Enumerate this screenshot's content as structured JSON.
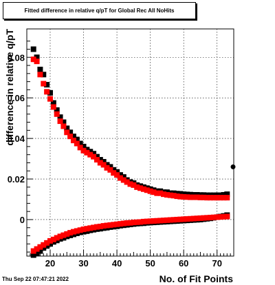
{
  "title": "Fitted difference in relative q/pT for Global Rec All NoHits",
  "timestamp": "Thu Sep 22 07:47:21 2022",
  "chart_data": {
    "type": "scatter",
    "title": "Fitted difference in relative q/pT for Global Rec All NoHits",
    "xlabel": "No. of Fit Points",
    "ylabel": "difference in relative q/pT",
    "xlim": [
      13,
      75
    ],
    "ylim": [
      -0.018,
      0.094
    ],
    "grid": true,
    "x_ticks": [
      20,
      30,
      40,
      50,
      60,
      70
    ],
    "x_tick_labels": [
      "20",
      "30",
      "40",
      "50",
      "60",
      "70"
    ],
    "y_ticks": [
      0,
      0.02,
      0.04,
      0.06,
      0.08
    ],
    "y_tick_labels": [
      "0",
      "0.02",
      "0.04",
      "0.06",
      "0.08"
    ],
    "colors": {
      "black": "#000000",
      "red": "#ff0000"
    },
    "series": [
      {
        "color": "black",
        "x": [
          15,
          16,
          17,
          18,
          19,
          20,
          21,
          22,
          23,
          24,
          25,
          26,
          27,
          28,
          29,
          30,
          31,
          32,
          33,
          34,
          35,
          36,
          37,
          38,
          39,
          40,
          41,
          42,
          43,
          44,
          45,
          46,
          47,
          48,
          49,
          50,
          51,
          52,
          53,
          54,
          55,
          56,
          57,
          58,
          59,
          60,
          61,
          62,
          63,
          64,
          65,
          66,
          67,
          68,
          69,
          70,
          71,
          72,
          73
        ],
        "y": [
          0.084,
          0.08,
          0.074,
          0.0715,
          0.0665,
          0.0625,
          0.0575,
          0.054,
          0.0505,
          0.048,
          0.045,
          0.043,
          0.041,
          0.0395,
          0.0375,
          0.036,
          0.0345,
          0.0335,
          0.0325,
          0.031,
          0.0295,
          0.0285,
          0.027,
          0.026,
          0.0245,
          0.0235,
          0.022,
          0.021,
          0.0195,
          0.0185,
          0.018,
          0.017,
          0.0165,
          0.016,
          0.0155,
          0.015,
          0.0145,
          0.014,
          0.014,
          0.0135,
          0.0135,
          0.013,
          0.013,
          0.0128,
          0.0127,
          0.0125,
          0.0124,
          0.0123,
          0.0122,
          0.0122,
          0.0121,
          0.0121,
          0.012,
          0.012,
          0.012,
          0.012,
          0.012,
          0.0122,
          0.0125
        ]
      },
      {
        "color": "red",
        "x": [
          15,
          16,
          17,
          18,
          19,
          20,
          21,
          22,
          23,
          24,
          25,
          26,
          27,
          28,
          29,
          30,
          31,
          32,
          33,
          34,
          35,
          36,
          37,
          38,
          39,
          40,
          41,
          42,
          43,
          44,
          45,
          46,
          47,
          48,
          49,
          50,
          51,
          52,
          53,
          54,
          55,
          56,
          57,
          58,
          59,
          60,
          61,
          62,
          63,
          64,
          65,
          66,
          67,
          68,
          69,
          70,
          71,
          72,
          73
        ],
        "y": [
          0.079,
          0.078,
          0.0715,
          0.067,
          0.063,
          0.0595,
          0.0555,
          0.052,
          0.0485,
          0.046,
          0.043,
          0.041,
          0.039,
          0.0375,
          0.0355,
          0.034,
          0.033,
          0.032,
          0.031,
          0.0295,
          0.028,
          0.027,
          0.0255,
          0.0245,
          0.023,
          0.022,
          0.0205,
          0.0195,
          0.0185,
          0.0175,
          0.017,
          0.016,
          0.0155,
          0.015,
          0.0145,
          0.014,
          0.0135,
          0.013,
          0.013,
          0.0125,
          0.0122,
          0.012,
          0.0118,
          0.0115,
          0.0113,
          0.0112,
          0.0111,
          0.011,
          0.011,
          0.011,
          0.0109,
          0.0109,
          0.0108,
          0.0108,
          0.0108,
          0.0108,
          0.0108,
          0.0108,
          0.0108
        ]
      },
      {
        "color": "black",
        "x": [
          15,
          16,
          17,
          18,
          19,
          20,
          21,
          22,
          23,
          24,
          25,
          26,
          27,
          28,
          29,
          30,
          31,
          32,
          33,
          34,
          35,
          36,
          37,
          38,
          39,
          40,
          41,
          42,
          43,
          44,
          45,
          46,
          47,
          48,
          49,
          50,
          51,
          52,
          53,
          54,
          55,
          56,
          57,
          58,
          59,
          60,
          61,
          62,
          63,
          64,
          65,
          66,
          67,
          68,
          69,
          70,
          71,
          72,
          73,
          75
        ],
        "y": [
          -0.0175,
          -0.0165,
          -0.0155,
          -0.014,
          -0.013,
          -0.012,
          -0.011,
          -0.0103,
          -0.0095,
          -0.009,
          -0.0083,
          -0.0078,
          -0.0073,
          -0.0068,
          -0.0063,
          -0.006,
          -0.0057,
          -0.0053,
          -0.005,
          -0.0047,
          -0.0045,
          -0.0042,
          -0.004,
          -0.0037,
          -0.0035,
          -0.0033,
          -0.003,
          -0.0028,
          -0.0026,
          -0.0024,
          -0.0022,
          -0.002,
          -0.0019,
          -0.0018,
          -0.0016,
          -0.0015,
          -0.0014,
          -0.0013,
          -0.0012,
          -0.0011,
          -0.001,
          -0.0009,
          -0.0008,
          -0.0007,
          -0.0006,
          -0.0005,
          -0.0004,
          -0.0003,
          -0.0002,
          -0.0001,
          0.0,
          0.0002,
          0.0004,
          0.0006,
          0.0009,
          0.0012,
          0.0015,
          0.0018,
          0.0022,
          0.026
        ]
      },
      {
        "color": "red",
        "x": [
          15,
          16,
          17,
          18,
          19,
          20,
          21,
          22,
          23,
          24,
          25,
          26,
          27,
          28,
          29,
          30,
          31,
          32,
          33,
          34,
          35,
          36,
          37,
          38,
          39,
          40,
          41,
          42,
          43,
          44,
          45,
          46,
          47,
          48,
          49,
          50,
          51,
          52,
          53,
          54,
          55,
          56,
          57,
          58,
          59,
          60,
          61,
          62,
          63,
          64,
          65,
          66,
          67,
          68,
          69,
          70,
          71,
          72,
          73
        ],
        "y": [
          -0.0155,
          -0.0145,
          -0.0135,
          -0.0125,
          -0.0115,
          -0.0105,
          -0.0098,
          -0.009,
          -0.0083,
          -0.0077,
          -0.0071,
          -0.0065,
          -0.006,
          -0.0056,
          -0.0052,
          -0.0048,
          -0.0045,
          -0.0042,
          -0.0039,
          -0.0036,
          -0.0034,
          -0.0031,
          -0.0029,
          -0.0027,
          -0.0025,
          -0.0023,
          -0.0021,
          -0.0019,
          -0.0017,
          -0.0016,
          -0.0014,
          -0.0013,
          -0.0012,
          -0.001,
          -0.0009,
          -0.0008,
          -0.0007,
          -0.0006,
          -0.0005,
          -0.0004,
          -0.0003,
          -0.0002,
          -0.0001,
          0.0,
          0.0001,
          0.0002,
          0.0003,
          0.0004,
          0.0005,
          0.0006,
          0.0007,
          0.0008,
          0.0009,
          0.001,
          0.0011,
          0.0012,
          0.0013,
          0.0014,
          0.0015
        ]
      }
    ]
  }
}
